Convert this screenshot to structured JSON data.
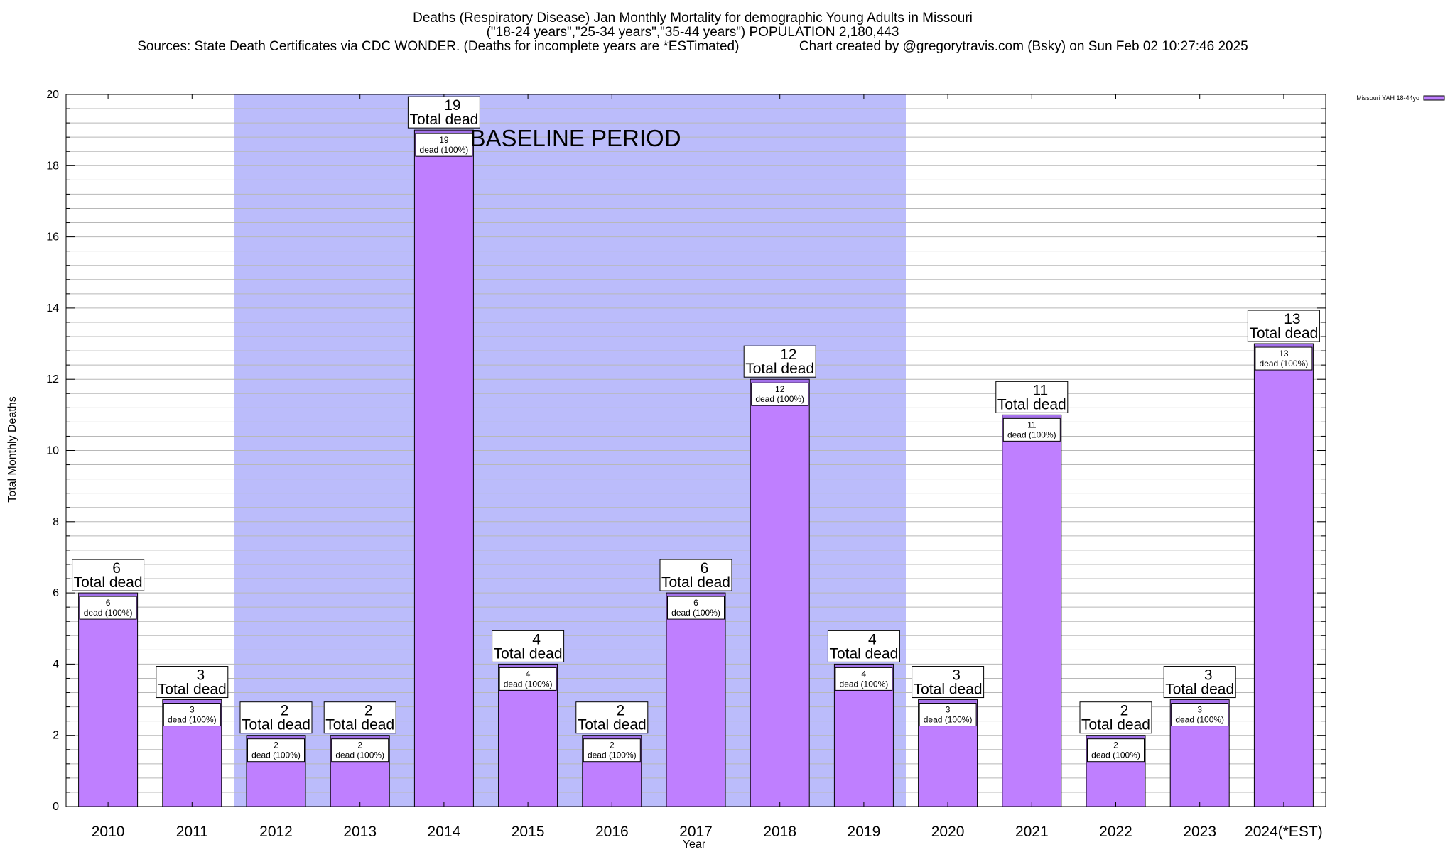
{
  "chart_data": {
    "type": "bar",
    "title_lines": [
      "Deaths (Respiratory Disease) Jan Monthly Mortality for demographic Young Adults in Missouri",
      "(\"18-24 years\",\"25-34 years\",\"35-44 years\") POPULATION 2,180,443",
      "Sources: State Death Certificates via CDC WONDER. (Deaths for incomplete years are *ESTimated)                Chart created by @gregorytravis.com (Bsky) on Sun Feb 02 10:27:46 2025"
    ],
    "xlabel": "Year",
    "ylabel": "Total Monthly Deaths",
    "ylim": [
      0,
      20
    ],
    "y_major_ticks": [
      0,
      2,
      4,
      6,
      8,
      10,
      12,
      14,
      16,
      18,
      20
    ],
    "y_minor_step": 0.4,
    "grid": true,
    "categories": [
      "2010",
      "2011",
      "2012",
      "2013",
      "2014",
      "2015",
      "2016",
      "2017",
      "2018",
      "2019",
      "2020",
      "2021",
      "2022",
      "2023",
      "2024(*EST)"
    ],
    "series": [
      {
        "name": "Missouri YAH 18-44yo",
        "values": [
          6,
          3,
          2,
          2,
          19,
          4,
          2,
          6,
          12,
          4,
          3,
          11,
          2,
          3,
          13
        ]
      }
    ],
    "total_labels": [
      "6",
      "3",
      "2",
      "2",
      "19",
      "4",
      "2",
      "6",
      "12",
      "4",
      "3",
      "11",
      "2",
      "3",
      "13"
    ],
    "total_label_text": "Total dead",
    "inner_labels": [
      "6",
      "3",
      "2",
      "2",
      "19",
      "4",
      "2",
      "6",
      "12",
      "4",
      "3",
      "11",
      "2",
      "3",
      "13"
    ],
    "inner_label_text": "dead (100%)",
    "baseline_period": {
      "label": "BASELINE PERIOD",
      "start": "2012",
      "end": "2019"
    },
    "legend": {
      "position": "top-right",
      "label": "Missouri YAH 18-44yo"
    },
    "colors": {
      "bar_fill": "#bf7fff",
      "bar_top": "#a070e8",
      "baseline_fill": "#bbbcfb",
      "grid": "#b8b8b8",
      "axis": "#000000"
    }
  }
}
